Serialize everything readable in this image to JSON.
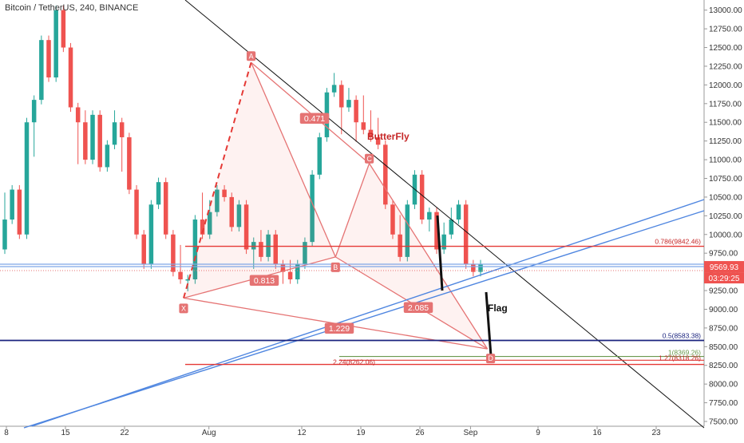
{
  "chart_data": {
    "type": "candlestick",
    "title": "Bitcoin / TetherUS, 240, BINANCE",
    "x_labels": [
      "8",
      "15",
      "22",
      "Aug",
      "12",
      "19",
      "26",
      "Sep",
      "9",
      "16",
      "23"
    ],
    "y_ticks": [
      "13000.00",
      "12750.00",
      "12500.00",
      "12250.00",
      "12000.00",
      "11750.00",
      "11500.00",
      "11250.00",
      "11000.00",
      "10750.00",
      "10500.00",
      "10250.00",
      "10000.00",
      "9750.00",
      "9500.00",
      "9250.00",
      "9000.00",
      "8750.00",
      "8500.00",
      "8250.00",
      "8000.00",
      "7750.00",
      "7500.00"
    ],
    "ylim": [
      7500,
      13050
    ],
    "pattern_name": "ButterFly",
    "pattern_points": [
      {
        "label": "X",
        "date": "2019-07-29",
        "price": 9150
      },
      {
        "label": "A",
        "date": "2019-08-06",
        "price": 12300
      },
      {
        "label": "B",
        "date": "2019-08-16",
        "price": 9700
      },
      {
        "label": "C",
        "date": "2019-08-20",
        "price": 10950
      },
      {
        "label": "D",
        "date": "2019-09-03",
        "price": 8470
      }
    ],
    "ratios": [
      "0.471",
      "0.813",
      "2.085",
      "1.229"
    ],
    "fib_levels": [
      {
        "label": "0.786(9842.46)",
        "price": 9842.46
      },
      {
        "label": "0.5(8583.38)",
        "price": 8583.38
      },
      {
        "label": "1(8369.26)",
        "price": 8369.26
      },
      {
        "label": "1.27(8318.26)",
        "price": 8318.26
      },
      {
        "label": "2.24(8262.06)",
        "price": 8262.06
      }
    ],
    "annotations": [
      "Flag"
    ],
    "price_badge": "9569.93",
    "time_badge": "03:29:25",
    "candles": [
      [
        9.8,
        10.5,
        10.4,
        10.2
      ],
      [
        10.2,
        10.5,
        10.7,
        10.6
      ],
      [
        10.6,
        10.2,
        10.2,
        10.0
      ],
      [
        10.0,
        10.8,
        10.8,
        11.5
      ],
      [
        11.5,
        11.2,
        11.1,
        11.8
      ],
      [
        11.8,
        12.2,
        12.5,
        12.6
      ],
      [
        12.6,
        12.4,
        12.6,
        12.1
      ],
      [
        12.1,
        12.6,
        12.8,
        13.0
      ],
      [
        13.0,
        12.8,
        13.1,
        12.5
      ],
      [
        12.5,
        12.1,
        12.0,
        11.7
      ],
      [
        11.7,
        11.2,
        11.0,
        11.5
      ],
      [
        11.5,
        11.6,
        11.4,
        11.0
      ],
      [
        11.0,
        11.4,
        11.3,
        11.6
      ],
      [
        11.6,
        11.5,
        11.0,
        10.9
      ],
      [
        10.9,
        11.1,
        11.3,
        11.2
      ],
      [
        11.2,
        11.6,
        11.4,
        11.5
      ],
      [
        11.5,
        11.1,
        10.9,
        11.3
      ],
      [
        11.3,
        11.2,
        11.1,
        10.6
      ],
      [
        10.6,
        10.4,
        10.1,
        10.0
      ],
      [
        10.0,
        9.9,
        9.7,
        9.6
      ],
      [
        9.6,
        10.2,
        10.5,
        10.4
      ],
      [
        10.4,
        10.6,
        10.5,
        10.7
      ],
      [
        10.7,
        10.4,
        10.1,
        10.0
      ],
      [
        10.0,
        9.7,
        9.6,
        9.5
      ],
      [
        9.5,
        9.8,
        9.5,
        9.4
      ],
      [
        9.4,
        9.2,
        9.3,
        9.4
      ],
      [
        9.4,
        9.6,
        9.9,
        10.2
      ],
      [
        10.2,
        10.5,
        10.3,
        10.0
      ],
      [
        10.0,
        10.4,
        10.6,
        10.3
      ],
      [
        10.3,
        10.2,
        10.5,
        10.6
      ],
      [
        10.6,
        10.4,
        10.8,
        10.5
      ],
      [
        10.5,
        10.2,
        10.3,
        10.1
      ],
      [
        10.1,
        9.9,
        10.2,
        10.4
      ],
      [
        10.4,
        10.1,
        9.9,
        9.8
      ],
      [
        9.8,
        9.7,
        9.6,
        9.9
      ],
      [
        9.9,
        10.0,
        9.9,
        9.7
      ],
      [
        9.7,
        9.9,
        9.8,
        10.0
      ],
      [
        10.0,
        9.8,
        9.7,
        9.6
      ],
      [
        9.6,
        9.4,
        9.4,
        9.5
      ],
      [
        9.5,
        9.6,
        9.5,
        9.4
      ],
      [
        9.4,
        9.3,
        9.5,
        9.6
      ],
      [
        9.6,
        9.6,
        9.7,
        9.9
      ],
      [
        9.9,
        10.3,
        10.6,
        10.8
      ],
      [
        10.8,
        10.9,
        11.1,
        11.3
      ],
      [
        11.3,
        11.5,
        11.7,
        11.9
      ],
      [
        11.9,
        12.1,
        12.3,
        12.0
      ],
      [
        12.0,
        11.6,
        11.4,
        11.7
      ],
      [
        11.7,
        11.9,
        12.0,
        11.8
      ],
      [
        11.8,
        11.6,
        11.3,
        11.5
      ],
      [
        11.5,
        11.8,
        11.6,
        11.4
      ],
      [
        11.4,
        11.6,
        11.5,
        11.3
      ],
      [
        11.3,
        11.5,
        11.4,
        11.2
      ],
      [
        11.2,
        10.9,
        10.6,
        10.4
      ],
      [
        10.4,
        10.1,
        10.2,
        10.0
      ],
      [
        10.0,
        10.2,
        9.9,
        9.7
      ],
      [
        9.7,
        10.0,
        10.2,
        10.4
      ],
      [
        10.4,
        10.7,
        10.9,
        10.8
      ],
      [
        10.8,
        10.6,
        10.4,
        10.2
      ],
      [
        10.2,
        10.0,
        10.1,
        10.3
      ],
      [
        10.3,
        10.1,
        10.0,
        9.8
      ],
      [
        9.8,
        10.1,
        10.2,
        10.0
      ],
      [
        10.0,
        10.3,
        10.5,
        10.2
      ],
      [
        10.2,
        10.1,
        10.3,
        10.4
      ],
      [
        10.4,
        10.2,
        10.0,
        9.6
      ],
      [
        9.6,
        9.5,
        9.6,
        9.5
      ],
      [
        9.5,
        9.6,
        9.6,
        9.6
      ]
    ]
  }
}
